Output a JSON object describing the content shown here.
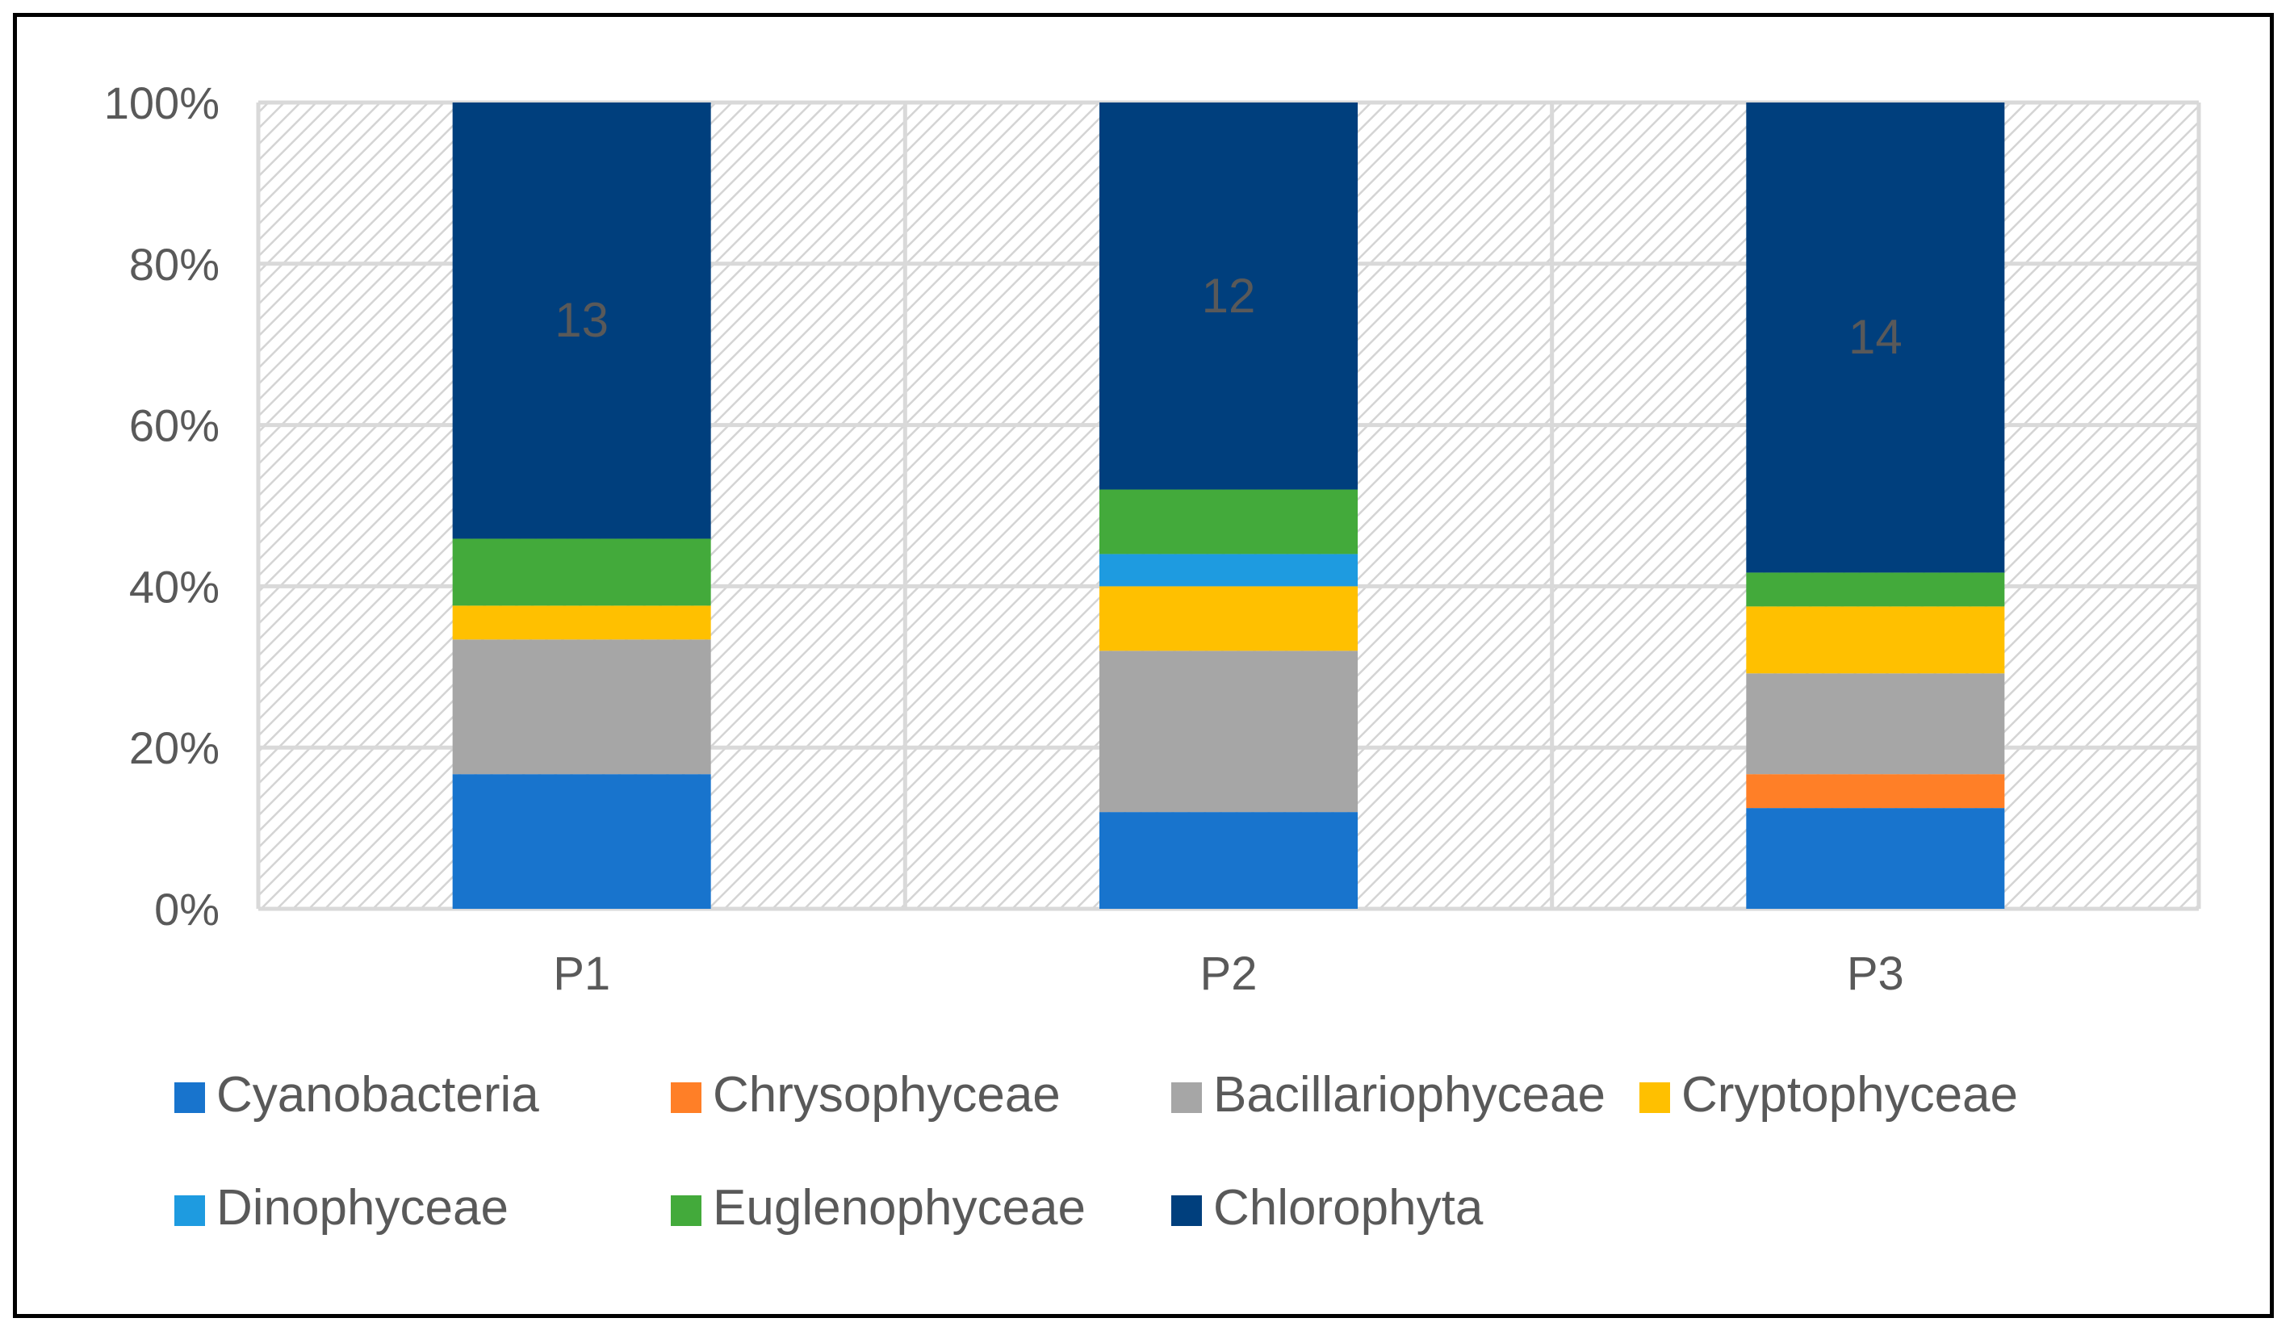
{
  "chart_data": {
    "type": "bar",
    "stacked": true,
    "percent": true,
    "categories": [
      "P1",
      "P2",
      "P3"
    ],
    "series": [
      {
        "name": "Cyanobacteria",
        "color": "#1874CD",
        "values": [
          16.7,
          12,
          12.5
        ]
      },
      {
        "name": "Chrysophyceae",
        "color": "#FF7F27",
        "values": [
          0,
          0,
          4.2
        ]
      },
      {
        "name": "Bacillariophyceae",
        "color": "#A6A6A6",
        "values": [
          16.7,
          20,
          12.5
        ]
      },
      {
        "name": "Cryptophyceae",
        "color": "#FFC000",
        "values": [
          4.2,
          8,
          8.3
        ]
      },
      {
        "name": "Dinophyceae",
        "color": "#1E9BE0",
        "values": [
          0,
          4,
          0
        ]
      },
      {
        "name": "Euglenophyceae",
        "color": "#43AA3B",
        "values": [
          8.3,
          8,
          4.2
        ]
      },
      {
        "name": "Chlorophyta",
        "color": "#003F7D",
        "values": [
          54.1,
          48,
          58.3
        ]
      }
    ],
    "data_labels": [
      {
        "category": "P1",
        "series": "Chlorophyta",
        "text": "13"
      },
      {
        "category": "P2",
        "series": "Chlorophyta",
        "text": "12"
      },
      {
        "category": "P3",
        "series": "Chlorophyta",
        "text": "14"
      }
    ],
    "yticks": [
      "0%",
      "20%",
      "40%",
      "60%",
      "80%",
      "100%"
    ],
    "ylim": [
      0,
      100
    ],
    "grid": true,
    "legend_position": "bottom",
    "plot_background": "hatched light gray"
  }
}
